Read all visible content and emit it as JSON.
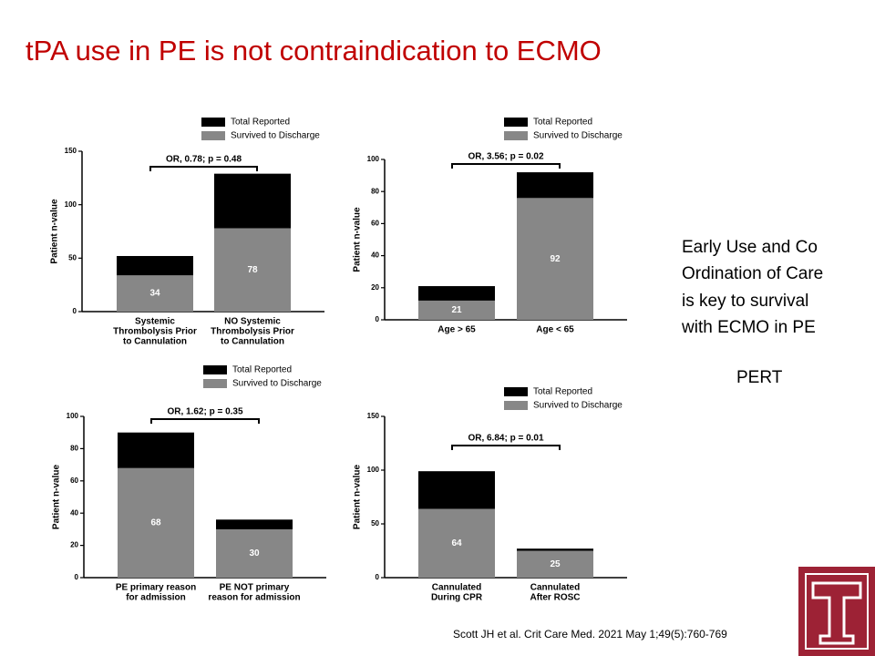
{
  "slide": {
    "title": "tPA use in PE is not contraindication to ECMO",
    "text_lines": [
      "Early Use and Co",
      "Ordination of Care",
      "is key to survival",
      "with ECMO in PE"
    ],
    "pert": "PERT",
    "citation": "Scott JH et al. Crit Care Med. 2021 May 1;49(5):760-769"
  },
  "chart_data": [
    {
      "type": "bar",
      "y_label": "Patient n-value",
      "annotation": "OR, 0.78; p = 0.48",
      "categories": [
        [
          "Systemic",
          "Thrombolysis Prior",
          "to Cannulation"
        ],
        [
          "NO Systemic",
          "Thrombolysis Prior",
          "to Cannulation"
        ]
      ],
      "series": [
        {
          "name": "Total Reported",
          "color": "#000000",
          "values": [
            52,
            129
          ]
        },
        {
          "name": "Survived to Discharge",
          "color": "#878787",
          "values": [
            34,
            78
          ],
          "labeled": true
        }
      ],
      "ylim": [
        0,
        150
      ],
      "yticks": [
        0,
        50,
        100,
        150
      ]
    },
    {
      "type": "bar",
      "y_label": "Patient n-value",
      "annotation": "OR, 3.56; p = 0.02",
      "categories": [
        [
          "Age > 65"
        ],
        [
          "Age < 65"
        ]
      ],
      "series": [
        {
          "name": "Total Reported",
          "color": "#000000",
          "values": [
            21,
            92
          ],
          "labeled": true
        },
        {
          "name": "Survived to Discharge",
          "color": "#878787",
          "values": [
            12,
            76
          ]
        }
      ],
      "ylim": [
        0,
        100
      ],
      "yticks": [
        0,
        20,
        40,
        60,
        80,
        100
      ]
    },
    {
      "type": "bar",
      "y_label": "Patient n-value",
      "annotation": "OR, 1.62; p = 0.35",
      "categories": [
        [
          "PE primary reason",
          "for admission"
        ],
        [
          "PE NOT primary",
          "reason for admission"
        ]
      ],
      "series": [
        {
          "name": "Total Reported",
          "color": "#000000",
          "values": [
            90,
            36
          ]
        },
        {
          "name": "Survived to Discharge",
          "color": "#878787",
          "values": [
            68,
            30
          ],
          "labeled": true
        }
      ],
      "ylim": [
        0,
        100
      ],
      "yticks": [
        0,
        20,
        40,
        60,
        80,
        100
      ]
    },
    {
      "type": "bar",
      "y_label": "Patient n-value",
      "annotation": "OR, 6.84; p = 0.01",
      "categories": [
        [
          "Cannulated",
          "During CPR"
        ],
        [
          "Cannulated",
          "After ROSC"
        ]
      ],
      "series": [
        {
          "name": "Total Reported",
          "color": "#000000",
          "values": [
            99,
            27
          ]
        },
        {
          "name": "Survived to Discharge",
          "color": "#878787",
          "values": [
            64,
            25
          ],
          "labeled": true
        }
      ],
      "ylim": [
        0,
        150
      ],
      "yticks": [
        0,
        50,
        100,
        150
      ]
    }
  ]
}
